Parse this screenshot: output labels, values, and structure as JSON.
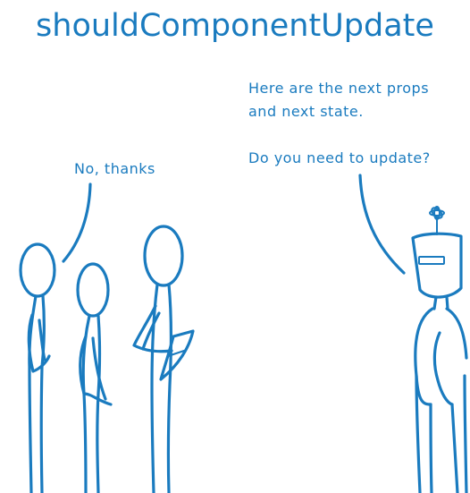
{
  "title": "shouldComponentUpdate",
  "robot_speech": {
    "line1": "Here are the next props",
    "line2": "and next state.",
    "line3": "Do you need to update?"
  },
  "people_speech": "No, thanks",
  "colors": {
    "ink": "#1a7bbf",
    "background": "#ffffff"
  }
}
